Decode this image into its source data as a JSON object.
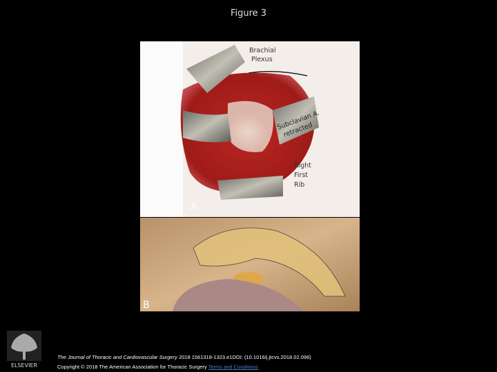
{
  "slide": {
    "title": "Figure 3",
    "panel_a": {
      "letter": "A",
      "brachial_plexus": [
        "Brachial",
        "Plexus"
      ],
      "subclavian": [
        "Subclavian A.",
        "retracted"
      ],
      "rib": [
        "Right",
        "First",
        "Rib"
      ]
    },
    "panel_b": {
      "letter": "B"
    },
    "footer": {
      "journal": "The Journal of Thoracic and Cardiovascular Surgery",
      "citation": "2018 1561318-1323.e1DOI: (10.1016/j.jtcvs.2018.02.096)",
      "copyright": "Copyright © 2018 The American Association for Thoracic Surgery",
      "link": "Terms and Conditions"
    },
    "logo": "ELSEVIER"
  }
}
